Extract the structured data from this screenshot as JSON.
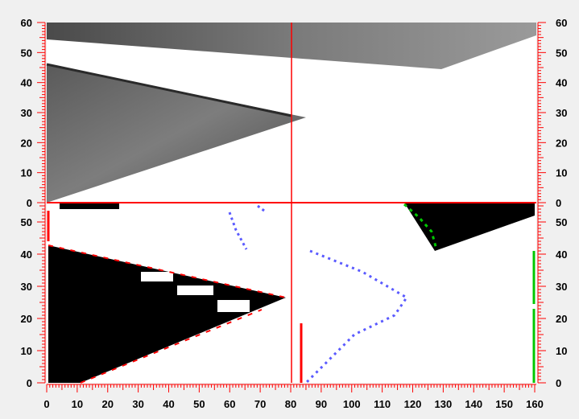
{
  "upper_panel": {
    "name": "camera-image",
    "left_axis_labels": [
      "60",
      "50",
      "40",
      "30",
      "20",
      "10",
      "0"
    ],
    "right_axis_labels": [
      "60",
      "50",
      "40",
      "30",
      "20",
      "10",
      "0"
    ]
  },
  "lower_panel": {
    "name": "edge-detection",
    "left_axis_labels": [
      "50",
      "40",
      "30",
      "20",
      "10",
      "0"
    ],
    "right_axis_labels": [
      "50",
      "40",
      "30",
      "20",
      "10",
      "0"
    ]
  },
  "bottom_axis_labels": [
    "0",
    "10",
    "20",
    "30",
    "40",
    "50",
    "60",
    "70",
    "80",
    "90",
    "100",
    "110",
    "120",
    "130",
    "140",
    "150",
    "160"
  ],
  "colors": {
    "axis_red": "#ff0000",
    "edge_green": "#00c800",
    "point_blue": "#5a5aff",
    "background": "#f0f0f0"
  },
  "crosshair": {
    "x": 81,
    "y": 0
  }
}
